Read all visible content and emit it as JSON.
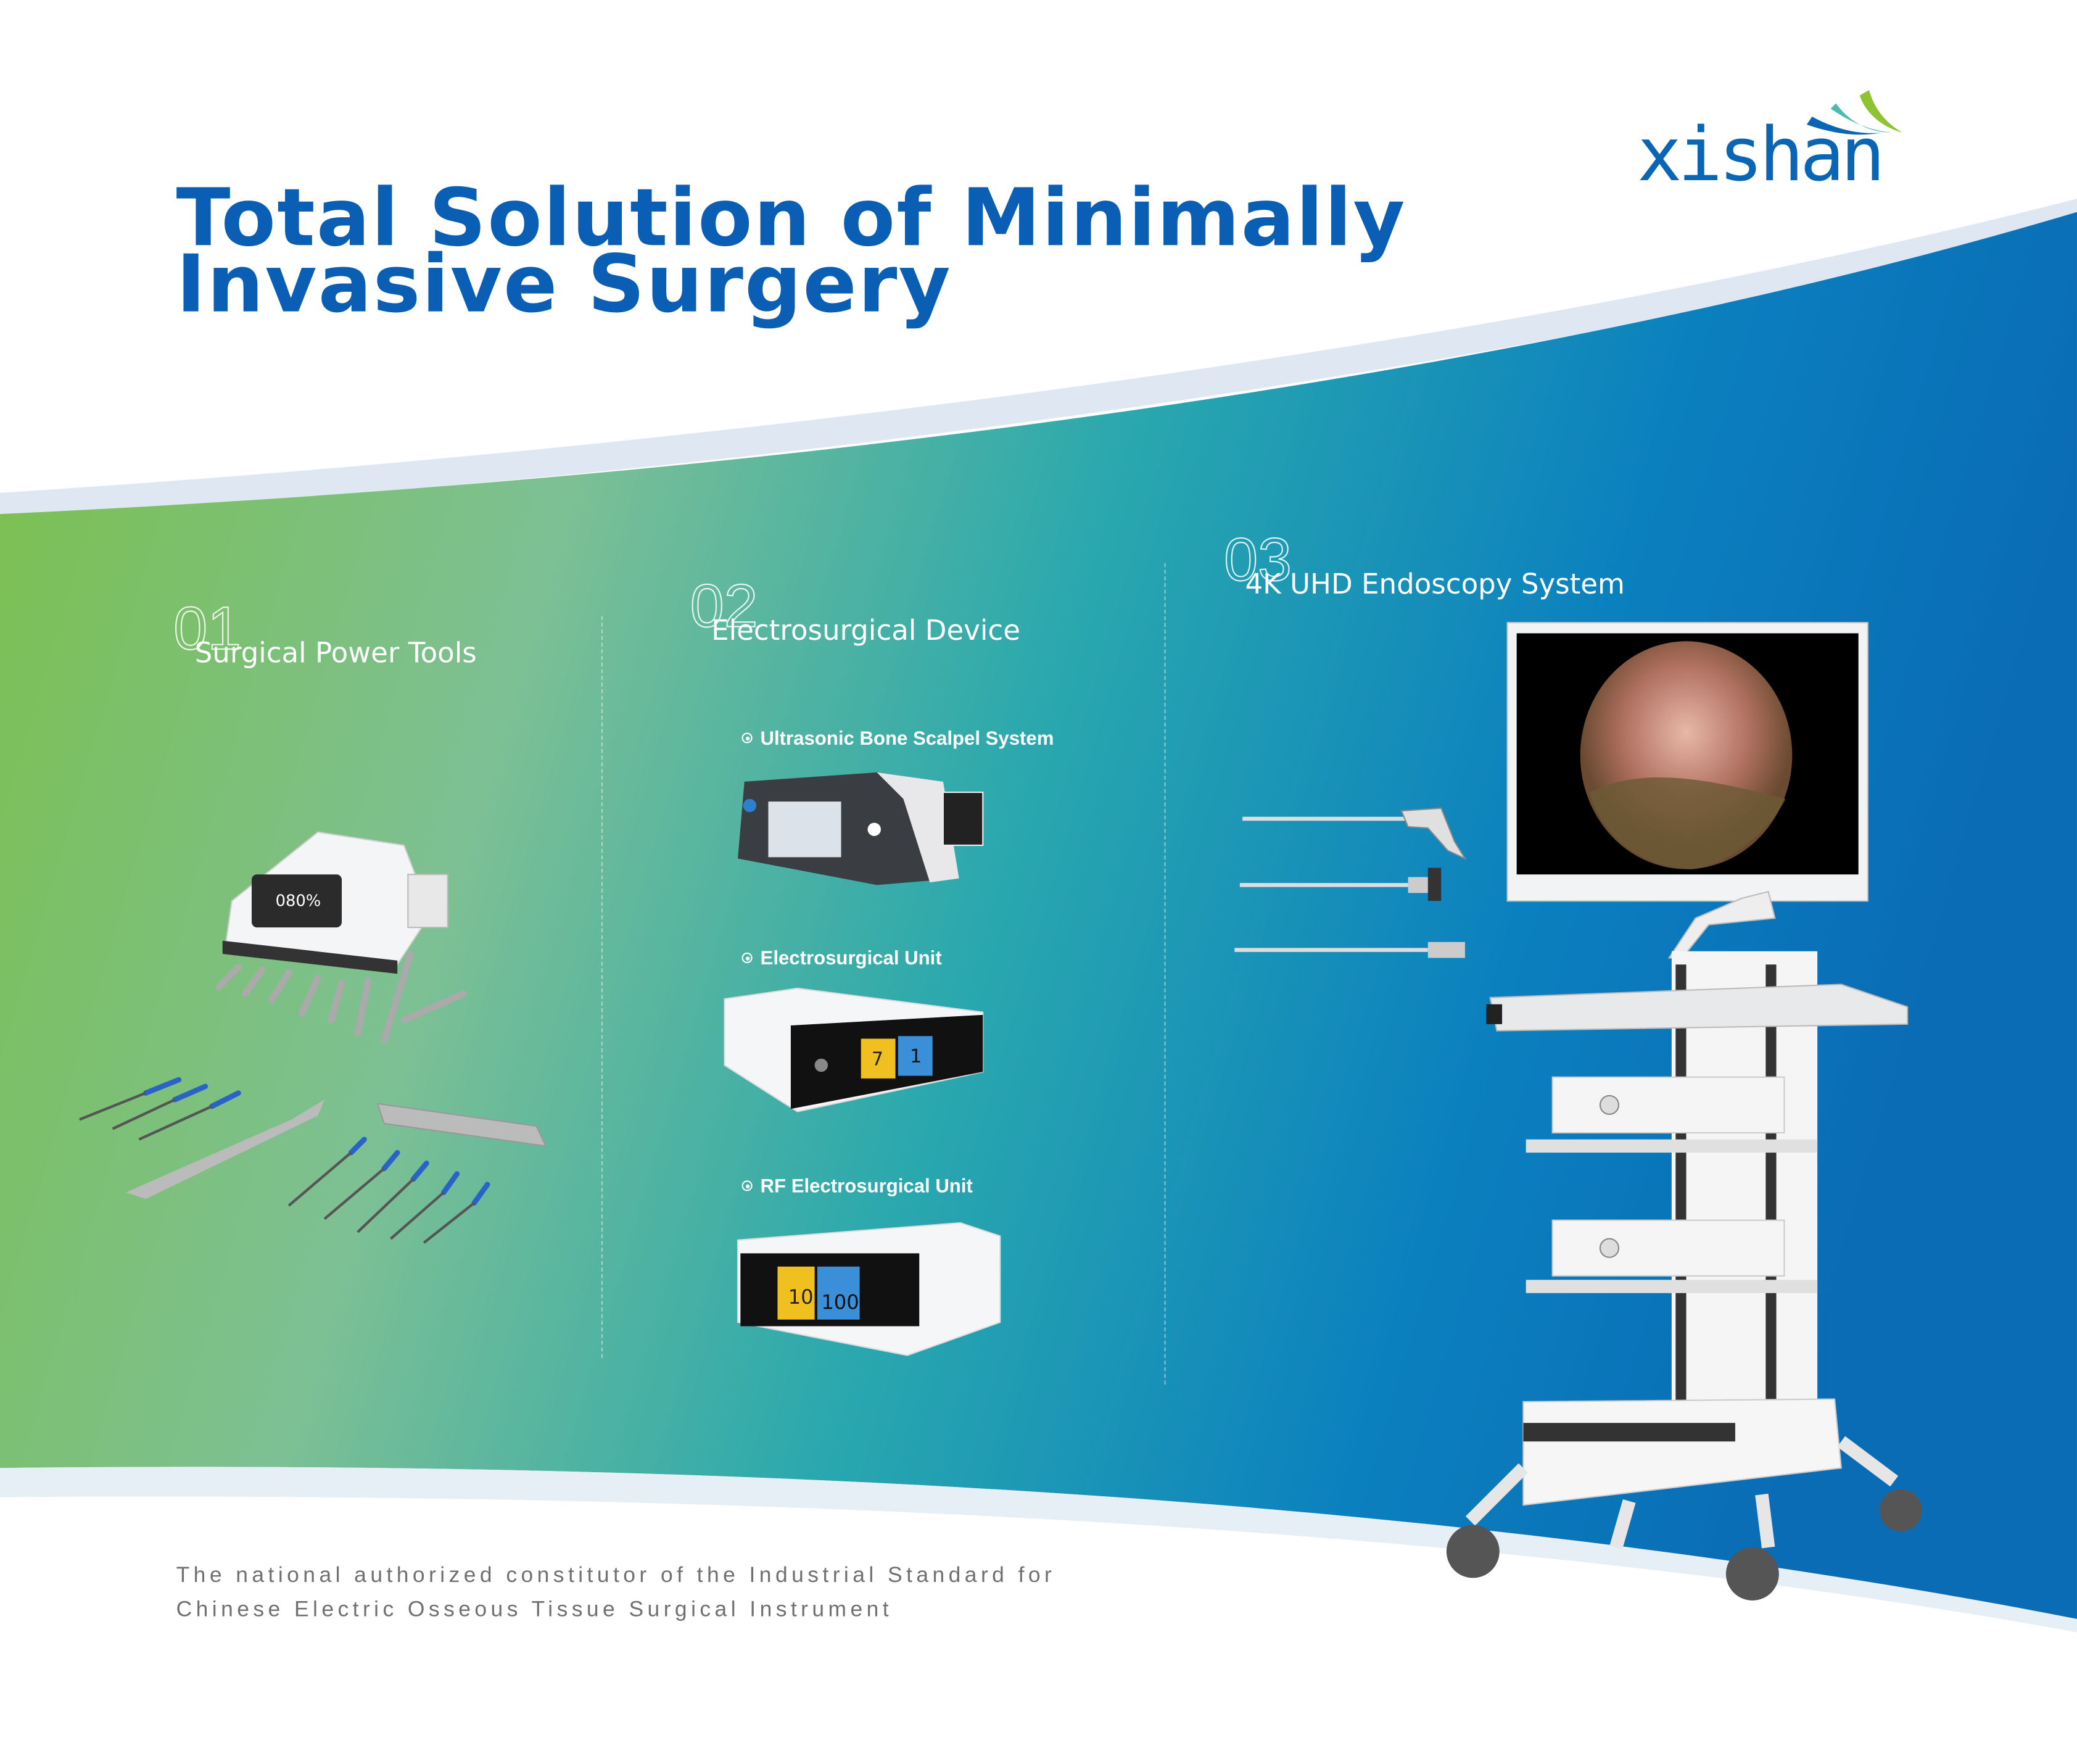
{
  "header": {
    "title_line1": "Total Solution of Minimally",
    "title_line2": "Invasive Surgery"
  },
  "brand": {
    "name": "xishan",
    "colors": {
      "blue": "#0a66b4",
      "teal": "#4bbcac",
      "green": "#8ec431"
    }
  },
  "sections": [
    {
      "num": "01",
      "label": "Surgical Power Tools"
    },
    {
      "num": "02",
      "label": "Electrosurgical Device",
      "items": [
        {
          "label": "Ultrasonic Bone Scalpel System"
        },
        {
          "label": "Electrosurgical Unit",
          "display": [
            "7",
            "1"
          ]
        },
        {
          "label": "RF Electrosurgical Unit",
          "display": [
            "10",
            "100"
          ]
        }
      ]
    },
    {
      "num": "03",
      "label": "4K UHD Endoscopy System"
    }
  ],
  "power_tool_display": "080%",
  "footer": {
    "line1": "The national authorized constitutor of the Industrial Standard for",
    "line2": "Chinese Electric Osseous Tissue Surgical Instrument"
  },
  "colors": {
    "band_left": "#7cc04a",
    "band_mid": "#2aa8ae",
    "band_right": "#0a6fb8",
    "title": "#0a5fb4"
  }
}
